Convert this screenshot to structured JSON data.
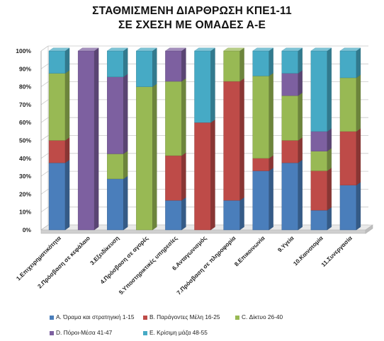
{
  "chart_data": {
    "type": "bar",
    "stacked": true,
    "percent": true,
    "three_d": true,
    "title_lines": [
      "ΣΤΑΘΜΙΣΜΕΝΗ ΔΙΑΡΘΡΩΣΗ ΚΠΕ1-11",
      "ΣΕ ΣΧΕΣΗ ΜΕ ΟΜΑΔΕΣ Α-Ε"
    ],
    "xlabel": "",
    "ylabel": "",
    "ylim": [
      0,
      100
    ],
    "y_ticks": [
      "0%",
      "10%",
      "20%",
      "30%",
      "40%",
      "50%",
      "60%",
      "70%",
      "80%",
      "90%",
      "100%"
    ],
    "legend_position": "bottom",
    "categories": [
      "1.Επιχειρηματικότητα",
      "2.Πρόσβαση σε κεφάλαιο",
      "3.Εξειδίκευση",
      "4.Πρόσβαση σε αγορές",
      "5.Υποστηρικτικές υπηρεσίες",
      "6.Ανταγωνισμός",
      "7.Πρόσβαση σε πληροφορία",
      "8.Επικοινωνία",
      "9.Υγεία",
      "10.Καινοτομία",
      "11.Συνεργασία"
    ],
    "series": [
      {
        "name": "A. Όραμα και στρατηγική 1-15",
        "color": "#4a7ebb",
        "values": [
          37.5,
          0,
          28.5,
          0,
          16.5,
          0,
          16.5,
          33,
          37.5,
          11,
          25
        ]
      },
      {
        "name": "B. Παράγοντες Μέλη 16-25",
        "color": "#be4b48",
        "values": [
          12.5,
          0,
          0,
          0,
          25,
          60,
          66.5,
          7,
          12.5,
          22,
          30
        ]
      },
      {
        "name": "C. Δίκτυο 26-40",
        "color": "#98b954",
        "values": [
          37.5,
          0,
          14,
          80,
          41.5,
          0,
          17,
          46,
          25,
          11,
          30
        ]
      },
      {
        "name": "D. Πόροι-Μέσα 41-47",
        "color": "#7d60a0",
        "values": [
          0,
          100,
          43,
          0,
          17,
          0,
          0,
          0,
          12.5,
          11,
          0
        ]
      },
      {
        "name": "E. Κρίσιμη μάζα 48-55",
        "color": "#46aac5",
        "values": [
          12.5,
          0,
          14.5,
          20,
          0,
          40,
          0,
          14,
          12.5,
          45,
          15
        ]
      }
    ]
  }
}
